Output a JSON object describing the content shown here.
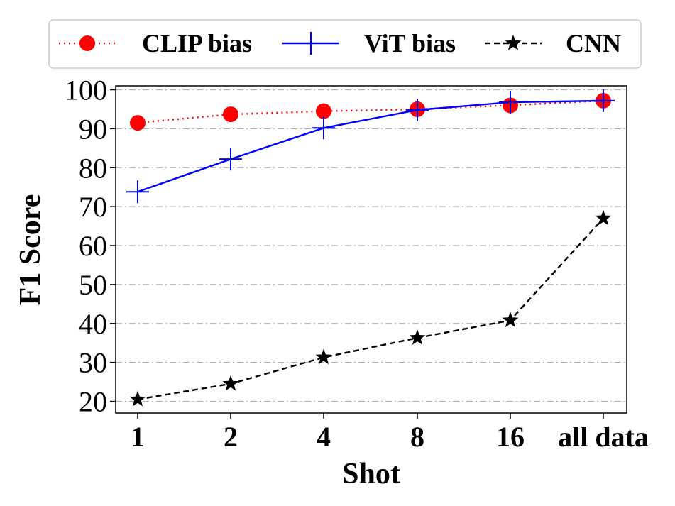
{
  "chart_data": {
    "type": "line",
    "title": "",
    "xlabel": "Shot",
    "ylabel": "F1 Score",
    "categories": [
      "1",
      "2",
      "4",
      "8",
      "16",
      "all data"
    ],
    "ylim": [
      17,
      101
    ],
    "yticks": [
      20,
      30,
      40,
      50,
      60,
      70,
      80,
      90,
      100
    ],
    "grid": "horizontal-dashdot",
    "legend_position": "top-center",
    "series": [
      {
        "name": "CLIP bias",
        "values": [
          91.5,
          93.7,
          94.5,
          95.0,
          96.0,
          97.2
        ],
        "color": "#ff0000",
        "line_style": "dotted",
        "marker": "circle"
      },
      {
        "name": "ViT bias",
        "values": [
          73.8,
          82.2,
          90.2,
          94.8,
          96.8,
          97.2
        ],
        "color": "#0000ff",
        "line_style": "solid",
        "marker": "plus"
      },
      {
        "name": "CNN",
        "values": [
          20.5,
          24.5,
          31.3,
          36.3,
          40.8,
          67.0
        ],
        "color": "#000000",
        "line_style": "dashed",
        "marker": "star"
      }
    ]
  }
}
